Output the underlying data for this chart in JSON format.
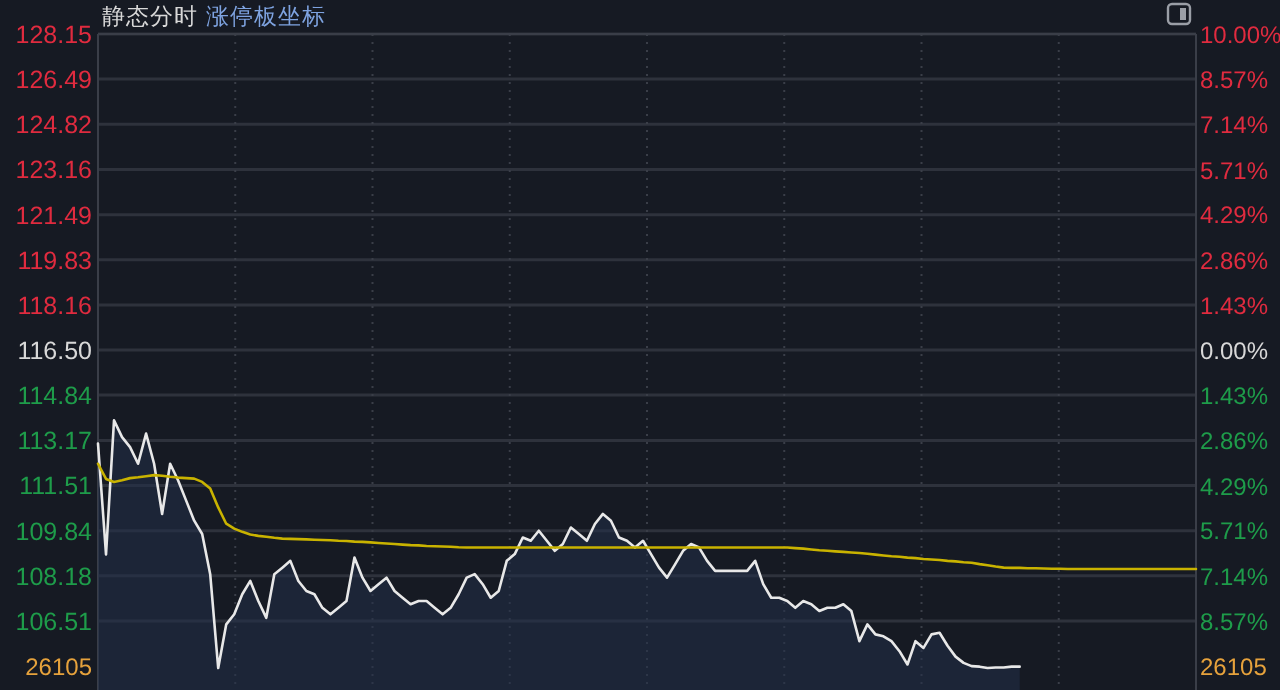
{
  "chart_data": {
    "type": "line",
    "title": "静态分时",
    "subtitle": "涨停板坐标",
    "categories": [
      null,
      null,
      null,
      null,
      null,
      null,
      null,
      null,
      null,
      null,
      null,
      null,
      null,
      null,
      null,
      null,
      null,
      null,
      null,
      null,
      null,
      null,
      null,
      null,
      null,
      null,
      null,
      null,
      null,
      null,
      null,
      null,
      null,
      null,
      null,
      null,
      null,
      null,
      null,
      null,
      null,
      null,
      null,
      null,
      null,
      null,
      null,
      null,
      null,
      null,
      null,
      null,
      null,
      null,
      null,
      null,
      null,
      null,
      null,
      null,
      null,
      null,
      null,
      null,
      null,
      null,
      null,
      null,
      null,
      null,
      null,
      null,
      null,
      null,
      null,
      null,
      null,
      null,
      null,
      null,
      null,
      null,
      null,
      null,
      null,
      null,
      null,
      null,
      null,
      null,
      null,
      null,
      null,
      null,
      null,
      null,
      null,
      null,
      null,
      null,
      null,
      null,
      null,
      null,
      null,
      null,
      null,
      null,
      null,
      null,
      null,
      null,
      null,
      null,
      null,
      null,
      null,
      null,
      null,
      null,
      null,
      null,
      null,
      null,
      null,
      null,
      null,
      null,
      null,
      null,
      null,
      null,
      null,
      null,
      null,
      null,
      null,
      null
    ],
    "series": [
      {
        "type": "area",
        "color": "#e8e8e8",
        "values": [
          113.05,
          108.97,
          113.91,
          113.29,
          112.92,
          112.31,
          113.42,
          112.31,
          110.46,
          112.31,
          111.69,
          110.95,
          110.21,
          109.72,
          108.24,
          104.78,
          106.39,
          106.76,
          107.5,
          107.99,
          107.25,
          106.63,
          108.24,
          108.48,
          108.73,
          107.99,
          107.62,
          107.5,
          107.0,
          106.76,
          107.0,
          107.25,
          108.85,
          108.11,
          107.62,
          107.87,
          108.11,
          107.62,
          107.37,
          107.13,
          107.25,
          107.25,
          107.0,
          106.76,
          107.0,
          107.5,
          108.11,
          108.24,
          107.87,
          107.37,
          107.62,
          108.73,
          108.98,
          109.59,
          109.47,
          109.84,
          109.47,
          109.1,
          109.35,
          109.96,
          109.72,
          109.47,
          110.09,
          110.46,
          110.21,
          109.59,
          109.47,
          109.22,
          109.47,
          108.98,
          108.48,
          108.11,
          108.6,
          109.1,
          109.35,
          109.22,
          108.73,
          108.36,
          108.36,
          108.36,
          108.36,
          108.36,
          108.73,
          107.87,
          107.37,
          107.37,
          107.25,
          107.0,
          107.25,
          107.13,
          106.88,
          107.0,
          107.0,
          107.13,
          106.88,
          105.77,
          106.39,
          106.02,
          105.95,
          105.77,
          105.4,
          104.91,
          105.77,
          105.52,
          106.02,
          106.08,
          105.6,
          105.2,
          104.97,
          104.85,
          104.83,
          104.78,
          104.8,
          104.8,
          104.83,
          104.83,
          null,
          null,
          null,
          null,
          null,
          null,
          null,
          null,
          null,
          null,
          null,
          null,
          null,
          null,
          null,
          null,
          null,
          null,
          null,
          null,
          null,
          null
        ]
      },
      {
        "color": "#c9b300",
        "values": [
          112.31,
          111.75,
          111.64,
          111.7,
          111.78,
          111.81,
          111.85,
          111.89,
          111.87,
          111.83,
          111.8,
          111.78,
          111.76,
          111.64,
          111.4,
          110.7,
          110.1,
          109.92,
          109.8,
          109.7,
          109.65,
          109.62,
          109.58,
          109.55,
          109.54,
          109.53,
          109.52,
          109.51,
          109.5,
          109.49,
          109.47,
          109.46,
          109.44,
          109.43,
          109.41,
          109.39,
          109.37,
          109.35,
          109.33,
          109.31,
          109.3,
          109.28,
          109.27,
          109.26,
          109.25,
          109.23,
          109.22,
          109.22,
          109.22,
          109.22,
          109.22,
          109.22,
          109.22,
          109.22,
          109.22,
          109.22,
          109.22,
          109.22,
          109.22,
          109.22,
          109.22,
          109.22,
          109.22,
          109.22,
          109.22,
          109.22,
          109.22,
          109.22,
          109.22,
          109.22,
          109.22,
          109.22,
          109.22,
          109.22,
          109.22,
          109.22,
          109.22,
          109.22,
          109.22,
          109.22,
          109.22,
          109.22,
          109.22,
          109.22,
          109.22,
          109.22,
          109.22,
          109.2,
          109.18,
          109.15,
          109.12,
          109.1,
          109.08,
          109.06,
          109.04,
          109.02,
          108.99,
          108.96,
          108.93,
          108.9,
          108.88,
          108.85,
          108.83,
          108.8,
          108.78,
          108.76,
          108.73,
          108.71,
          108.68,
          108.66,
          108.61,
          108.57,
          108.52,
          108.48,
          108.47,
          108.47,
          108.46,
          108.46,
          108.45,
          108.44,
          108.44,
          108.43,
          108.43,
          108.43,
          108.43,
          108.43,
          108.43,
          108.43,
          108.43,
          108.43,
          108.43,
          108.43,
          108.43,
          108.43,
          108.43,
          108.43,
          108.43,
          108.43
        ]
      }
    ],
    "ylim": [
      103.97,
      128.15
    ],
    "yticks": [
      128.15,
      126.49,
      124.82,
      123.16,
      121.49,
      119.83,
      118.16,
      {
        "value": 116.5,
        "label": "116.50"
      },
      114.84,
      113.17,
      111.51,
      109.84,
      108.18,
      106.51
    ],
    "annotations": [
      "26105",
      "26105"
    ],
    "y2lim": [
      -10.76,
      10.0
    ],
    "y2ticks": [
      {
        "value": 10,
        "label": "10.00%"
      },
      {
        "value": 8.57,
        "label": "8.57%"
      },
      {
        "value": 7.14,
        "label": "7.14%"
      },
      {
        "value": 5.71,
        "label": "5.71%"
      },
      {
        "value": 4.29,
        "label": "4.29%"
      },
      {
        "value": 2.86,
        "label": "2.86%"
      },
      {
        "value": 1.43,
        "label": "1.43%"
      },
      {
        "value": 0,
        "label": "0.00%"
      },
      {
        "value": -1.43,
        "label": "1.43%"
      },
      {
        "value": -2.86,
        "label": "2.86%"
      },
      {
        "value": -4.29,
        "label": "4.29%"
      },
      {
        "value": -5.71,
        "label": "5.71%"
      },
      {
        "value": -7.14,
        "label": "7.14%"
      },
      {
        "value": -8.57,
        "label": "8.57%"
      }
    ],
    "grid": true,
    "line_style": "solid",
    "marker": "none"
  }
}
